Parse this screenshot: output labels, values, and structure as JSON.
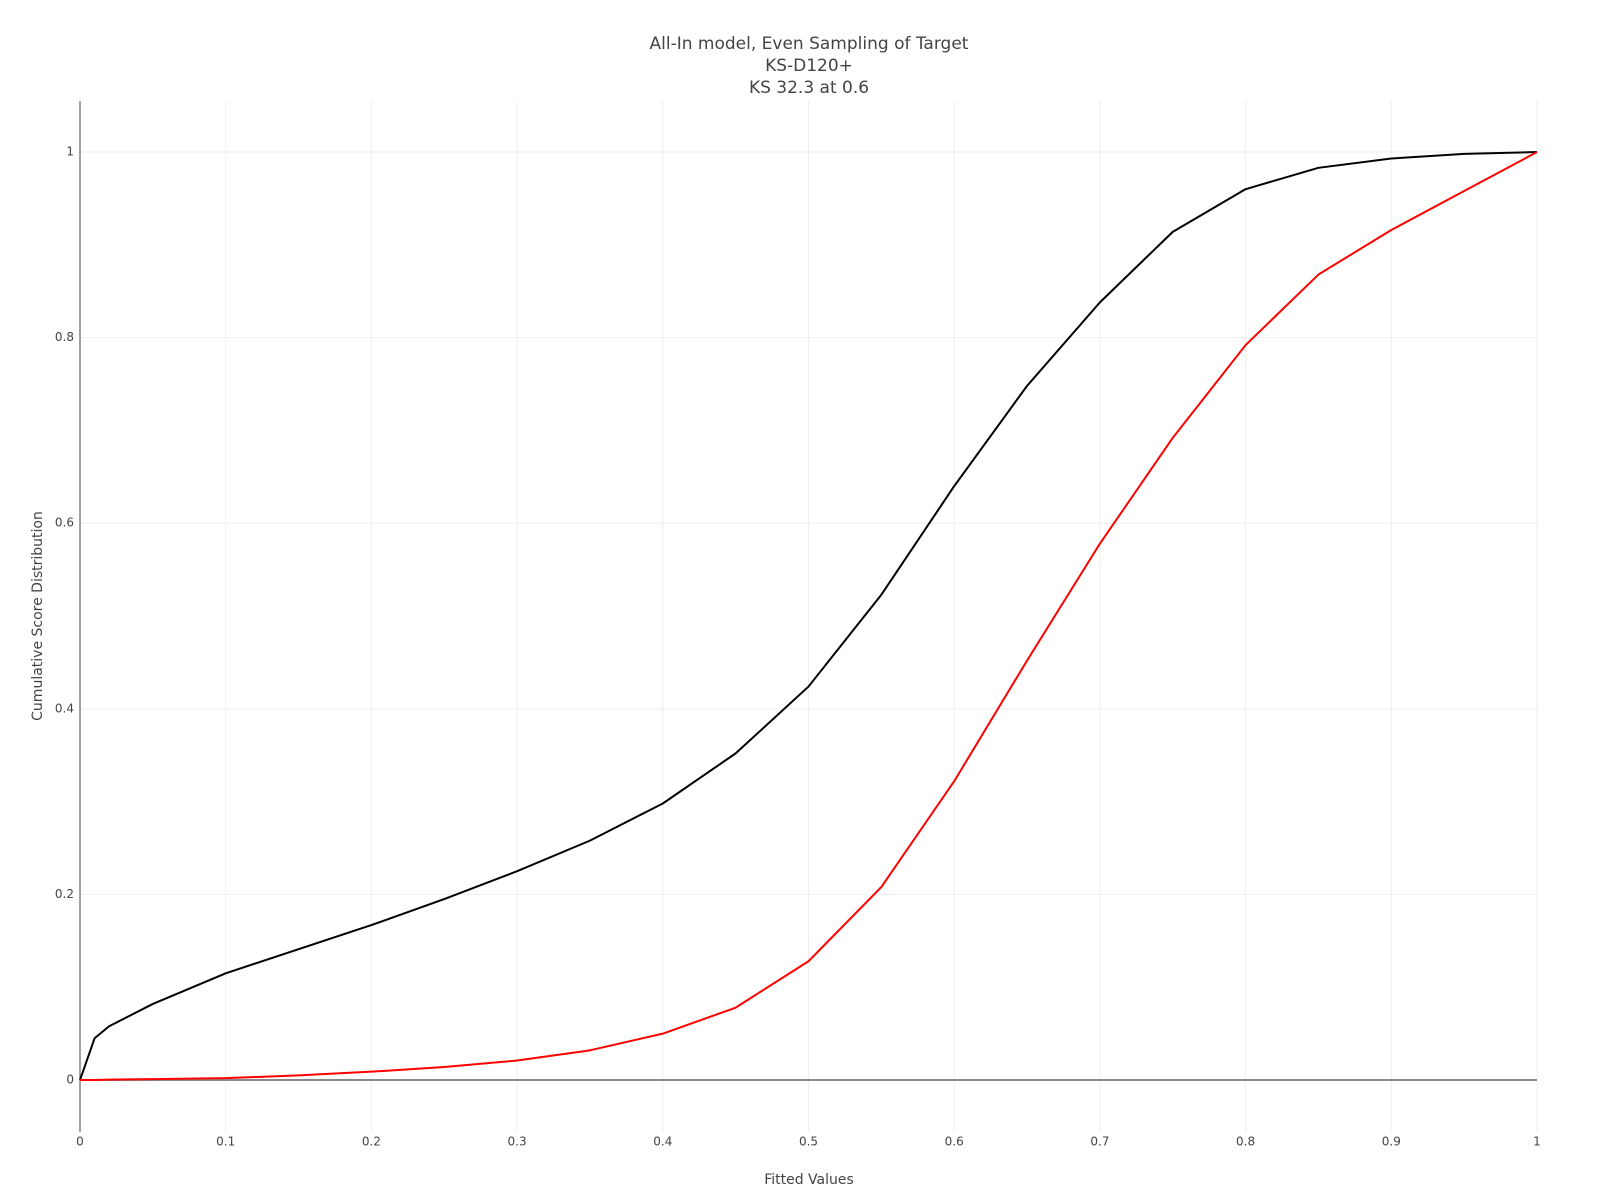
{
  "chart_data": {
    "type": "line",
    "title": [
      "All-In model, Even Sampling of Target",
      "KS-D120+",
      "KS 32.3 at 0.6"
    ],
    "x_label": "Fitted Values",
    "y_label": "Cumulative Score Distribution",
    "x": [
      0,
      0.01,
      0.02,
      0.05,
      0.1,
      0.15,
      0.2,
      0.25,
      0.3,
      0.35,
      0.4,
      0.45,
      0.5,
      0.55,
      0.6,
      0.65,
      0.7,
      0.75,
      0.8,
      0.85,
      0.9,
      0.95,
      1
    ],
    "series": [
      {
        "color": "#000000",
        "values": [
          0,
          0.045,
          0.058,
          0.082,
          0.115,
          0.141,
          0.167,
          0.195,
          0.225,
          0.258,
          0.298,
          0.352,
          0.424,
          0.523,
          0.64,
          0.748,
          0.838,
          0.914,
          0.96,
          0.983,
          0.993,
          0.998,
          1
        ]
      },
      {
        "color": "#ff0000",
        "values": [
          0,
          0,
          0.0005,
          0.001,
          0.002,
          0.005,
          0.009,
          0.014,
          0.021,
          0.032,
          0.05,
          0.078,
          0.128,
          0.208,
          0.322,
          0.452,
          0.578,
          0.692,
          0.792,
          0.868,
          0.916,
          0.958,
          1
        ]
      }
    ],
    "xlim": [
      0,
      1
    ],
    "xticks": [
      0,
      0.1,
      0.2,
      0.3,
      0.4,
      0.5,
      0.6,
      0.7,
      0.8,
      0.9,
      1
    ],
    "ylim": [
      -0.056,
      1.055
    ],
    "yticks": [
      0,
      0.2,
      0.4,
      0.6,
      0.8,
      1
    ],
    "grid": true
  }
}
